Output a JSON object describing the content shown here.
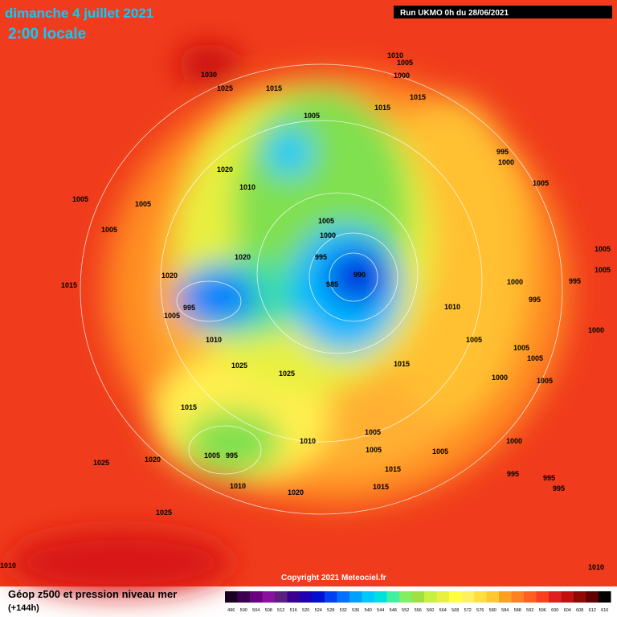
{
  "header": {
    "date": "dimanche 4 juillet 2021",
    "time": "2:00 locale",
    "run": "Run UKMO 0h du 28/06/2021"
  },
  "copyright": "Copyright 2021 Meteociel.fr",
  "footer": {
    "title": "Géop z500 et pression niveau mer",
    "lead": "(+144h)"
  },
  "scale": {
    "labels": [
      496,
      500,
      504,
      508,
      512,
      516,
      520,
      524,
      528,
      532,
      536,
      540,
      544,
      548,
      552,
      556,
      560,
      564,
      568,
      572,
      576,
      580,
      584,
      588,
      592,
      596,
      600,
      604,
      608,
      612,
      616
    ],
    "colors": [
      "#1a0020",
      "#3c0050",
      "#6a0080",
      "#8a10a0",
      "#5a2080",
      "#3a0090",
      "#2000b0",
      "#0010d0",
      "#0040f0",
      "#0070ff",
      "#00a0ff",
      "#00c8ff",
      "#00e0e0",
      "#40f0a0",
      "#80f060",
      "#a0e040",
      "#c8f040",
      "#e8f040",
      "#ffff40",
      "#fff060",
      "#ffe040",
      "#ffc830",
      "#ffa020",
      "#ff8020",
      "#ff6020",
      "#f84020",
      "#e02020",
      "#c01010",
      "#900808",
      "#600000",
      "#000000"
    ]
  },
  "pressure_labels": [
    1030,
    1025,
    1015,
    1010,
    1005,
    1000,
    1015,
    1015,
    1005,
    995,
    1000,
    1020,
    1010,
    1005,
    1005,
    1005,
    1005,
    1005,
    1000,
    1020,
    995,
    990,
    985,
    1020,
    1015,
    1005,
    1005,
    995,
    1000,
    995,
    1010,
    995,
    1005,
    1010,
    1000,
    1005,
    1005,
    1005,
    1015,
    1025,
    1025,
    1000,
    1005,
    1015,
    1010,
    1005,
    1000,
    1005,
    1005,
    1005,
    995,
    1020,
    1025,
    1015,
    995,
    995,
    995,
    1010,
    1015,
    1020,
    1025,
    1010,
    1010
  ]
}
